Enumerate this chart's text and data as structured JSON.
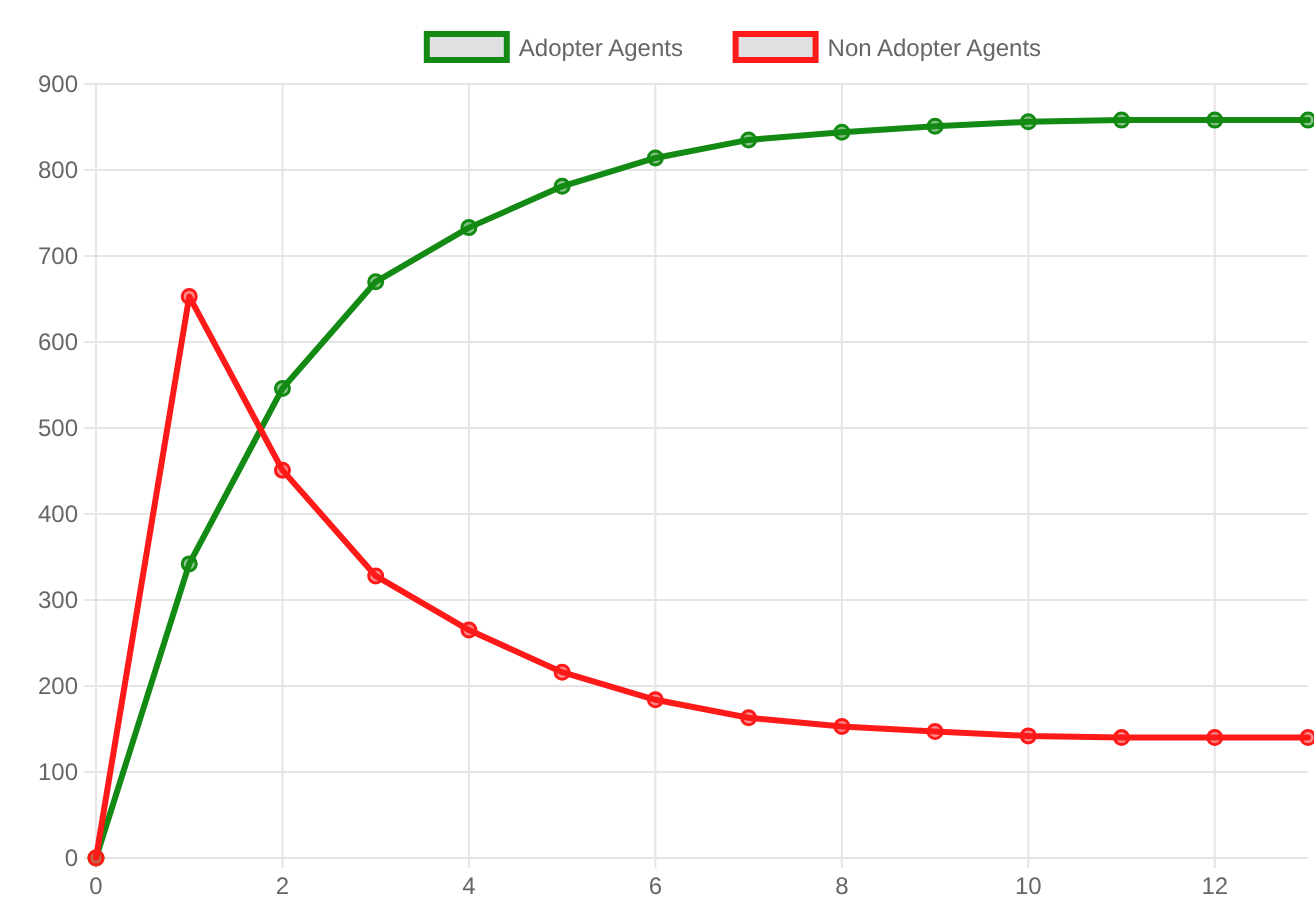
{
  "chart_data": {
    "type": "line",
    "x": [
      0,
      1,
      2,
      3,
      4,
      5,
      6,
      7,
      8,
      9,
      10,
      11,
      12,
      13
    ],
    "xlim": [
      0,
      13
    ],
    "xticks": [
      0,
      2,
      4,
      6,
      8,
      10,
      12
    ],
    "ylim": [
      0,
      900
    ],
    "yticks": [
      0,
      100,
      200,
      300,
      400,
      500,
      600,
      700,
      800,
      900
    ],
    "grid": true,
    "legend": "top",
    "marker": "circle",
    "line_style": "solid",
    "series": [
      {
        "name": "Adopter Agents",
        "color": "#138a13",
        "values": [
          0,
          342,
          546,
          670,
          733,
          781,
          814,
          835,
          844,
          851,
          856,
          858,
          858,
          858
        ]
      },
      {
        "name": "Non Adopter Agents",
        "color": "#ff1a1a",
        "values": [
          0,
          653,
          451,
          328,
          265,
          216,
          184,
          163,
          153,
          147,
          142,
          140,
          140,
          140
        ]
      }
    ]
  }
}
